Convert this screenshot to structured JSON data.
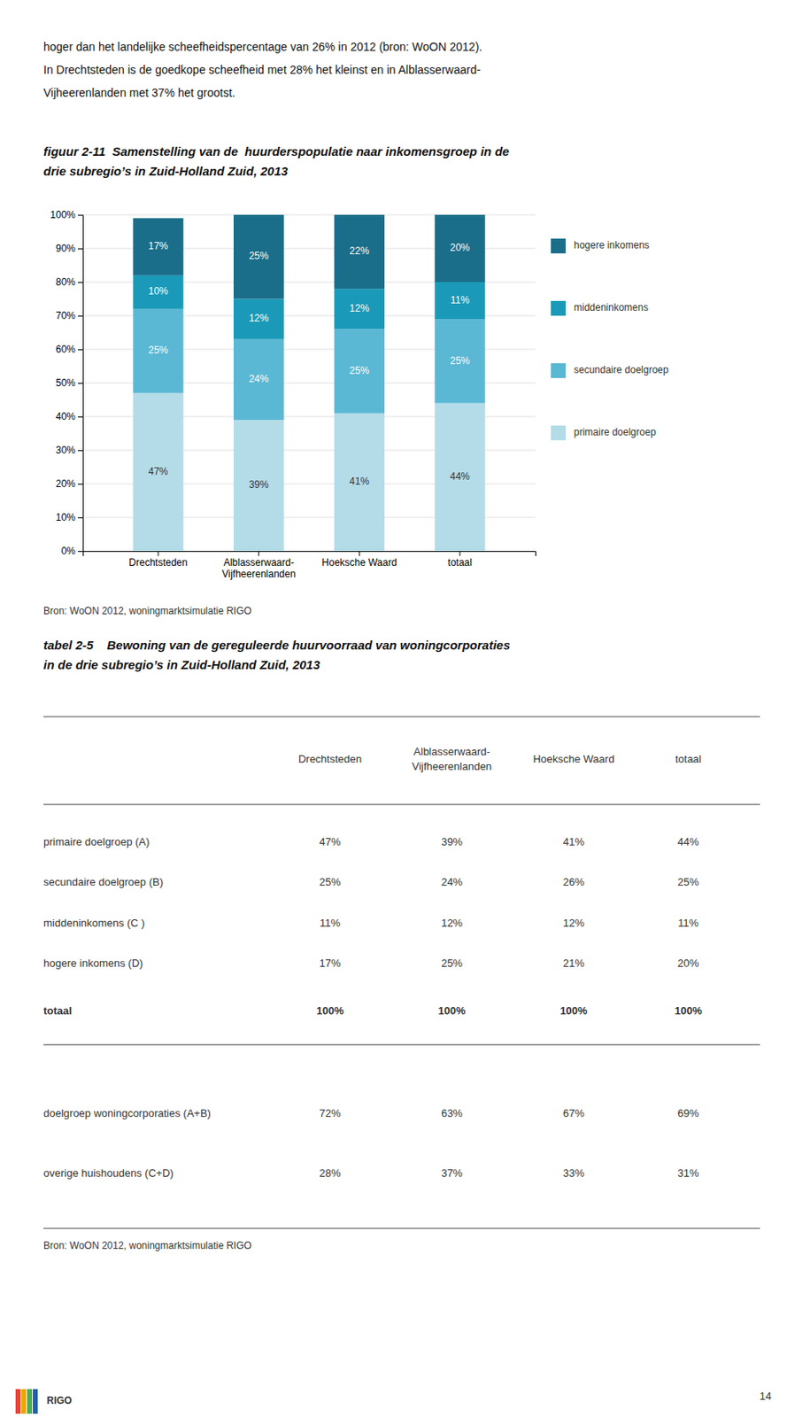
{
  "chart_data": {
    "type": "bar",
    "stacked": true,
    "title": "figuur 2-11  Samenstelling van de  huurderspopulatie naar inkomensgroep in de\ndrie subregio’s in Zuid-Holland Zuid, 2013",
    "categories": [
      "Drechtsteden",
      "Alblasserwaard-\nVijfheerenlanden",
      "Hoeksche Waard",
      "totaal"
    ],
    "series": [
      {
        "name": "primaire doelgroep",
        "color": "#b3dce8",
        "values": [
          47,
          39,
          41,
          44
        ],
        "value_labels": [
          "47%",
          "39%",
          "41%",
          "44%"
        ]
      },
      {
        "name": "secundaire doelgroep",
        "color": "#5bb8d4",
        "values": [
          25,
          24,
          25,
          25
        ],
        "value_labels": [
          "25%",
          "24%",
          "25%",
          "25%"
        ]
      },
      {
        "name": "middeninkomens",
        "color": "#1a9ab8",
        "values": [
          10,
          12,
          12,
          11
        ],
        "value_labels": [
          "10%",
          "12%",
          "12%",
          "11%"
        ]
      },
      {
        "name": "hogere inkomens",
        "color": "#1a6e8a",
        "values": [
          17,
          25,
          22,
          20
        ],
        "value_labels": [
          "17%",
          "25%",
          "22%",
          "20%"
        ]
      }
    ],
    "ylim": [
      0,
      100
    ],
    "yticks": [
      {
        "value": 0,
        "label": "0%"
      },
      {
        "value": 10,
        "label": "10%"
      },
      {
        "value": 20,
        "label": "20%"
      },
      {
        "value": 30,
        "label": "30%"
      },
      {
        "value": 40,
        "label": "40%"
      },
      {
        "value": 50,
        "label": "50%"
      },
      {
        "value": 60,
        "label": "60%"
      },
      {
        "value": 70,
        "label": "70%"
      },
      {
        "value": 80,
        "label": "80%"
      },
      {
        "value": 90,
        "label": "90%"
      },
      {
        "value": 100,
        "label": "100%"
      }
    ],
    "grid": true,
    "legend": "right",
    "data_labels": true
  },
  "intro_text": [
    "hoger dan het landelijke scheefheidspercentage van 26% in 2012 (bron: WoON 2012).",
    "In Drechtsteden is de goedkope scheefheid met 28% het kleinst en in Alblasserwaard-",
    "Vijheerenlanden met 37% het grootst."
  ],
  "bron_chart": "Bron: WoON 2012, woningmarktsimulatie RIGO",
  "table": {
    "title": "tabel 2-5    Bewoning van de gereguleerde huurvoorraad van woningcorporaties\nin de drie subregio’s in Zuid-Holland Zuid, 2013",
    "col_headers": [
      null,
      "Drechtsteden",
      "Alblasserwaard-\nVijfheerenlanden",
      "Hoeksche Waard",
      "totaal"
    ],
    "rows": [
      [
        "primaire doelgroep (A)",
        "47%",
        "39%",
        "41%",
        "44%"
      ],
      [
        "secundaire doelgroep (B)",
        "25%",
        "24%",
        "26%",
        "25%"
      ],
      [
        "middeninkomens (C )",
        "11%",
        "12%",
        "12%",
        "11%"
      ],
      [
        "hogere inkomens (D)",
        "17%",
        "25%",
        "21%",
        "20%"
      ],
      [
        "totaal",
        "100%",
        "100%",
        "100%",
        "100%"
      ]
    ],
    "rows2": [
      [
        "doelgroep woningcorporaties (A+B)",
        "72%",
        "63%",
        "67%",
        "69%"
      ],
      [
        "overige huishoudens (C+D)",
        "28%",
        "37%",
        "33%",
        "31%"
      ]
    ],
    "source": "Bron: WoON 2012, woningmarktsimulatie RIGO"
  },
  "page_number": "14",
  "logo": {
    "text": "RIGO",
    "colors": [
      "#e8423a",
      "#f0a500",
      "#4ab04a",
      "#2060b0"
    ]
  }
}
